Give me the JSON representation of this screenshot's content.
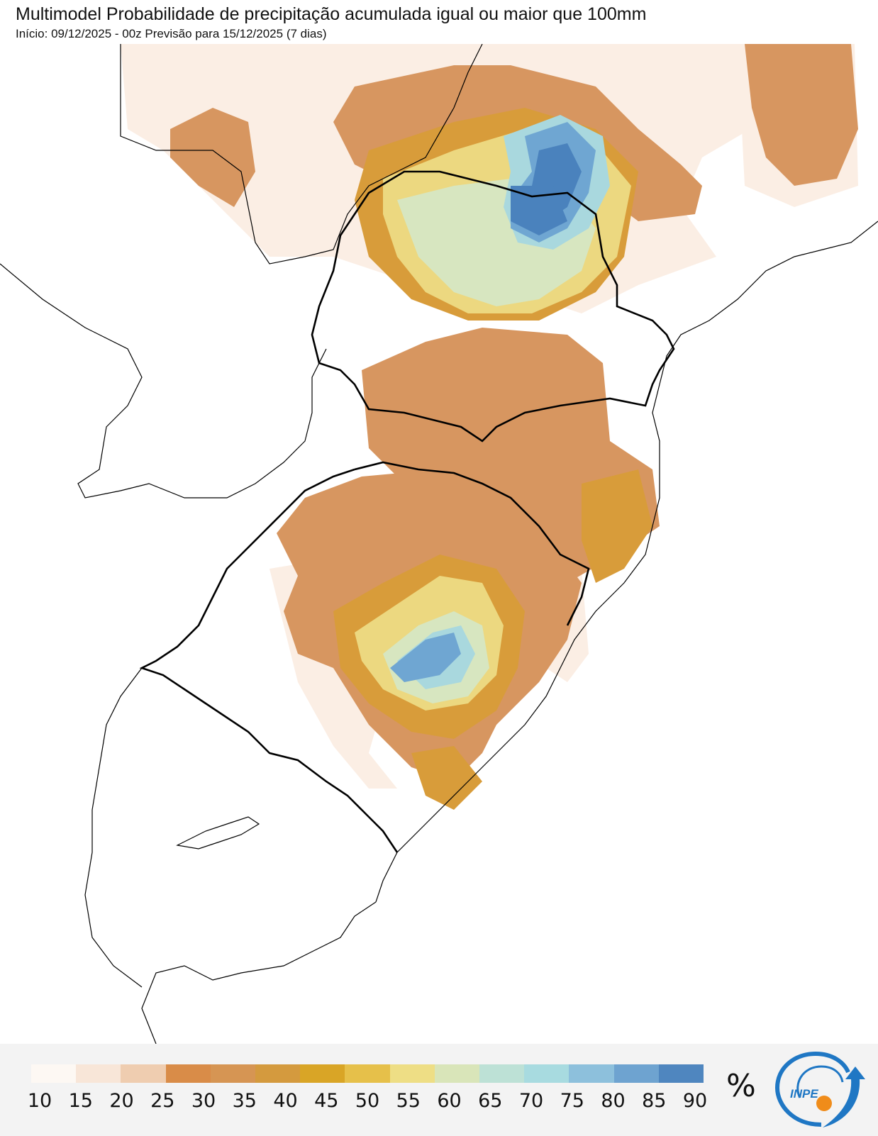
{
  "header": {
    "title": "Multimodel Probabilidade de precipitação acumulada igual ou maior que 100mm",
    "subtitle": "Início: 09/12/2025 - 00z  Previsão para 15/12/2025 (7 dias)"
  },
  "legend": {
    "ticks": [
      "10",
      "15",
      "20",
      "25",
      "30",
      "35",
      "40",
      "45",
      "50",
      "55",
      "60",
      "65",
      "70",
      "75",
      "80",
      "85",
      "90"
    ],
    "unit": "%",
    "colors": [
      "#fdf8f3",
      "#f8e6d8",
      "#efcdb0",
      "#d98c48",
      "#d69553",
      "#d49a3e",
      "#d9a526",
      "#e6c04a",
      "#eede85",
      "#d9e5b9",
      "#bde1d6",
      "#a8dbe0",
      "#8dc0dc",
      "#6ea3d0",
      "#4f86bf"
    ]
  },
  "logo": {
    "text": "INPE",
    "colors": {
      "primary": "#1f77c4",
      "accent": "#f08c1a"
    }
  },
  "map": {
    "colors": {
      "prob_10": "#fbeee4",
      "prob_20": "#e8b48a",
      "prob_30": "#d79660",
      "prob_40": "#d89c3a",
      "prob_50": "#ecd880",
      "prob_60": "#d7e6c0",
      "prob_70": "#a9d8de",
      "prob_80": "#6fa6d2",
      "prob_90": "#4a82bd",
      "borders": "#000000"
    }
  }
}
